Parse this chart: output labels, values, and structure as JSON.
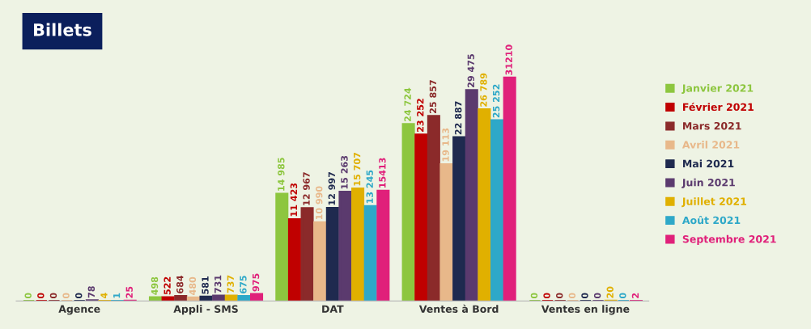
{
  "chart_data": {
    "type": "bar",
    "title": "Billets",
    "categories": [
      "Agence",
      "Appli - SMS",
      "DAT",
      "Ventes à Bord",
      "Ventes en ligne"
    ],
    "legend": "right",
    "series": [
      {
        "name": "Janvier 2021",
        "color": "#8dc63f",
        "values": [
          0,
          498,
          14985,
          24724,
          0
        ],
        "value_labels": [
          "0",
          "498",
          "14 985",
          "24 724",
          "0"
        ]
      },
      {
        "name": "Février 2021",
        "color": "#c00000",
        "values": [
          0,
          522,
          11423,
          23252,
          0
        ],
        "value_labels": [
          "0",
          "522",
          "11 423",
          "23 252",
          "0"
        ]
      },
      {
        "name": "Mars 2021",
        "color": "#8b2a2a",
        "values": [
          0,
          684,
          12967,
          25857,
          0
        ],
        "value_labels": [
          "0",
          "684",
          "12 967",
          "25 857",
          "0"
        ]
      },
      {
        "name": "Avril 2021",
        "color": "#e8b88a",
        "values": [
          0,
          480,
          10990,
          19113,
          0
        ],
        "value_labels": [
          "0",
          "480",
          "10 990",
          "19 113",
          "0"
        ]
      },
      {
        "name": "Mai 2021",
        "color": "#1f2a4f",
        "values": [
          0,
          581,
          12997,
          22887,
          0
        ],
        "value_labels": [
          "0",
          "581",
          "12 997",
          "22 887",
          "0"
        ]
      },
      {
        "name": "Juin 2021",
        "color": "#5b3a6e",
        "values": [
          78,
          731,
          15263,
          29475,
          0
        ],
        "value_labels": [
          "78",
          "731",
          "15 263",
          "29 475",
          "0"
        ]
      },
      {
        "name": "Juillet 2021",
        "color": "#e0b000",
        "values": [
          4,
          737,
          15707,
          26789,
          20
        ],
        "value_labels": [
          "4",
          "737",
          "15 707",
          "26 789",
          "20"
        ]
      },
      {
        "name": "Août 2021",
        "color": "#2ea8c8",
        "values": [
          1,
          675,
          13245,
          25252,
          0
        ],
        "value_labels": [
          "1",
          "675",
          "13 245",
          "25 252",
          "0"
        ]
      },
      {
        "name": "Septembre 2021",
        "color": "#e0207a",
        "values": [
          25,
          975,
          15413,
          31210,
          2
        ],
        "value_labels": [
          "25",
          "975",
          "15413",
          "31210",
          "2"
        ]
      }
    ]
  }
}
